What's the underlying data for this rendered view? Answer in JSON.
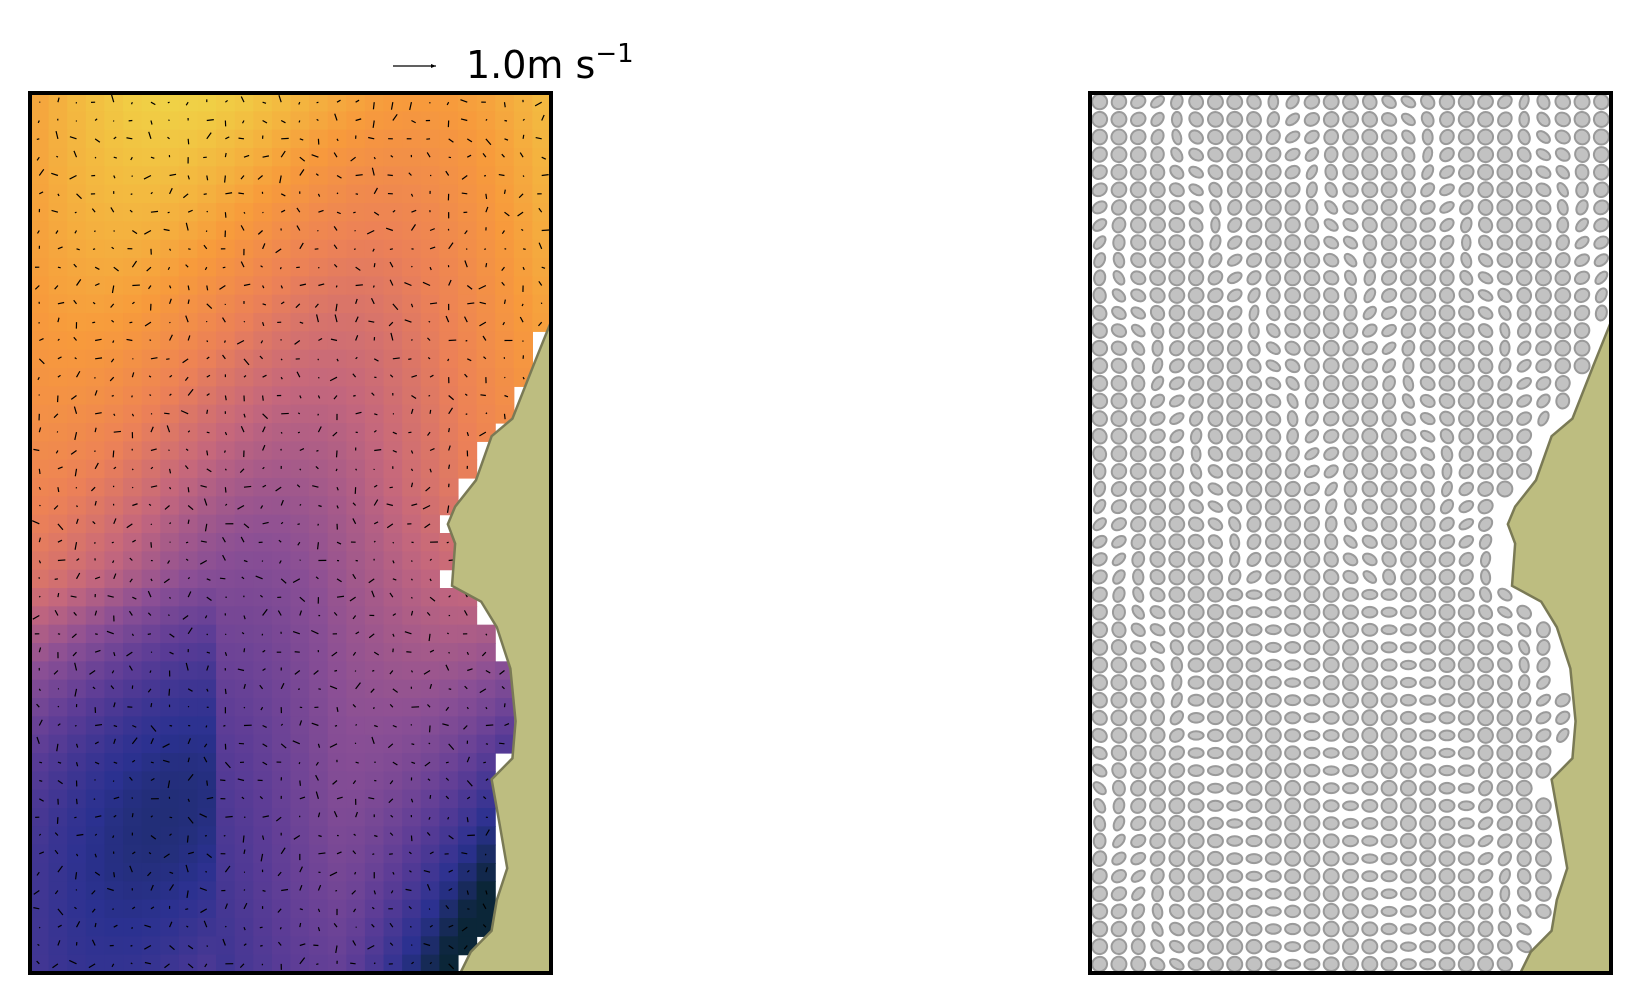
{
  "quiver_key": {
    "value_text": "1.0m s",
    "exponent": "−1"
  }
}
